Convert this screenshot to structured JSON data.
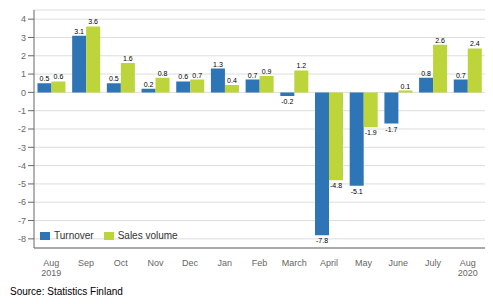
{
  "chart_data": {
    "type": "bar",
    "categories": [
      "Aug\n2019",
      "Sep",
      "Oct",
      "Nov",
      "Dec",
      "Jan",
      "Feb",
      "March",
      "April",
      "May",
      "June",
      "July",
      "Aug\n2020"
    ],
    "series": [
      {
        "name": "Turnover",
        "color": "#2e75b6",
        "values": [
          0.5,
          3.1,
          0.5,
          0.2,
          0.6,
          1.3,
          0.7,
          -0.2,
          -7.8,
          -5.1,
          -1.7,
          0.8,
          0.7
        ]
      },
      {
        "name": "Sales volume",
        "color": "#bdd43a",
        "values": [
          0.6,
          3.6,
          1.6,
          0.8,
          0.7,
          0.4,
          0.9,
          1.2,
          -4.8,
          -1.9,
          0.1,
          2.6,
          2.4
        ]
      }
    ],
    "ylim": [
      -8.5,
      4.5
    ],
    "yticks": [
      -8,
      -7,
      -6,
      -5,
      -4,
      -3,
      -2,
      -1,
      0,
      1,
      2,
      3,
      4
    ],
    "grid": true,
    "legend": "lower left",
    "data_labels": true,
    "annotations": [
      "Source: Statistics Finland"
    ]
  }
}
